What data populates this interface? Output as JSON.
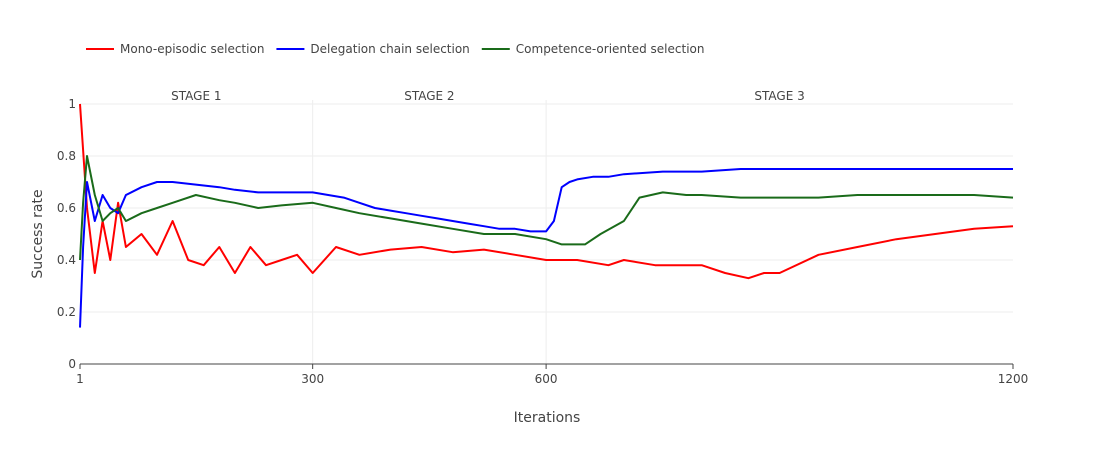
{
  "chart_data": {
    "type": "line",
    "xlabel": "Iterations",
    "ylabel": "Success rate",
    "xlim": [
      1,
      1200
    ],
    "ylim": [
      0,
      1
    ],
    "x_ticks": [
      1,
      300,
      600,
      1200
    ],
    "y_ticks": [
      0,
      0.2,
      0.4,
      0.6,
      0.8,
      1
    ],
    "grid": true,
    "legend_position": "top-left",
    "stages": [
      {
        "label": "STAGE 1",
        "x_start": 1,
        "x_end": 300
      },
      {
        "label": "STAGE 2",
        "x_start": 300,
        "x_end": 600
      },
      {
        "label": "STAGE 3",
        "x_start": 600,
        "x_end": 1200
      }
    ],
    "series": [
      {
        "name": "Mono-episodic selection",
        "color": "#ff0000",
        "x": [
          1,
          10,
          20,
          30,
          40,
          50,
          60,
          80,
          100,
          120,
          140,
          160,
          180,
          200,
          220,
          240,
          260,
          280,
          300,
          330,
          360,
          400,
          440,
          480,
          520,
          560,
          600,
          640,
          680,
          700,
          740,
          780,
          800,
          830,
          860,
          880,
          900,
          950,
          1000,
          1050,
          1100,
          1150,
          1200
        ],
        "y": [
          1.0,
          0.6,
          0.35,
          0.55,
          0.4,
          0.62,
          0.45,
          0.5,
          0.42,
          0.55,
          0.4,
          0.38,
          0.45,
          0.35,
          0.45,
          0.38,
          0.4,
          0.42,
          0.35,
          0.45,
          0.42,
          0.44,
          0.45,
          0.43,
          0.44,
          0.42,
          0.4,
          0.4,
          0.38,
          0.4,
          0.38,
          0.38,
          0.38,
          0.35,
          0.33,
          0.35,
          0.35,
          0.42,
          0.45,
          0.48,
          0.5,
          0.52,
          0.53
        ]
      },
      {
        "name": "Delegation chain selection",
        "color": "#0000ff",
        "x": [
          1,
          5,
          10,
          20,
          30,
          40,
          50,
          60,
          80,
          100,
          120,
          150,
          180,
          200,
          230,
          260,
          290,
          300,
          320,
          340,
          360,
          380,
          400,
          420,
          440,
          460,
          480,
          500,
          520,
          540,
          560,
          580,
          600,
          610,
          620,
          630,
          640,
          660,
          680,
          700,
          750,
          800,
          850,
          900,
          950,
          1000,
          1050,
          1100,
          1150,
          1200
        ],
        "y": [
          0.14,
          0.45,
          0.7,
          0.55,
          0.65,
          0.6,
          0.58,
          0.65,
          0.68,
          0.7,
          0.7,
          0.69,
          0.68,
          0.67,
          0.66,
          0.66,
          0.66,
          0.66,
          0.65,
          0.64,
          0.62,
          0.6,
          0.59,
          0.58,
          0.57,
          0.56,
          0.55,
          0.54,
          0.53,
          0.52,
          0.52,
          0.51,
          0.51,
          0.55,
          0.68,
          0.7,
          0.71,
          0.72,
          0.72,
          0.73,
          0.74,
          0.74,
          0.75,
          0.75,
          0.75,
          0.75,
          0.75,
          0.75,
          0.75,
          0.75
        ]
      },
      {
        "name": "Competence-oriented selection",
        "color": "#1a6b1a",
        "x": [
          1,
          5,
          10,
          20,
          30,
          40,
          50,
          60,
          80,
          100,
          120,
          150,
          180,
          200,
          230,
          260,
          300,
          330,
          360,
          400,
          440,
          480,
          520,
          560,
          600,
          620,
          650,
          670,
          700,
          720,
          750,
          780,
          800,
          850,
          900,
          950,
          1000,
          1050,
          1100,
          1150,
          1200
        ],
        "y": [
          0.4,
          0.62,
          0.8,
          0.65,
          0.55,
          0.58,
          0.6,
          0.55,
          0.58,
          0.6,
          0.62,
          0.65,
          0.63,
          0.62,
          0.6,
          0.61,
          0.62,
          0.6,
          0.58,
          0.56,
          0.54,
          0.52,
          0.5,
          0.5,
          0.48,
          0.46,
          0.46,
          0.5,
          0.55,
          0.64,
          0.66,
          0.65,
          0.65,
          0.64,
          0.64,
          0.64,
          0.65,
          0.65,
          0.65,
          0.65,
          0.64
        ]
      }
    ]
  }
}
